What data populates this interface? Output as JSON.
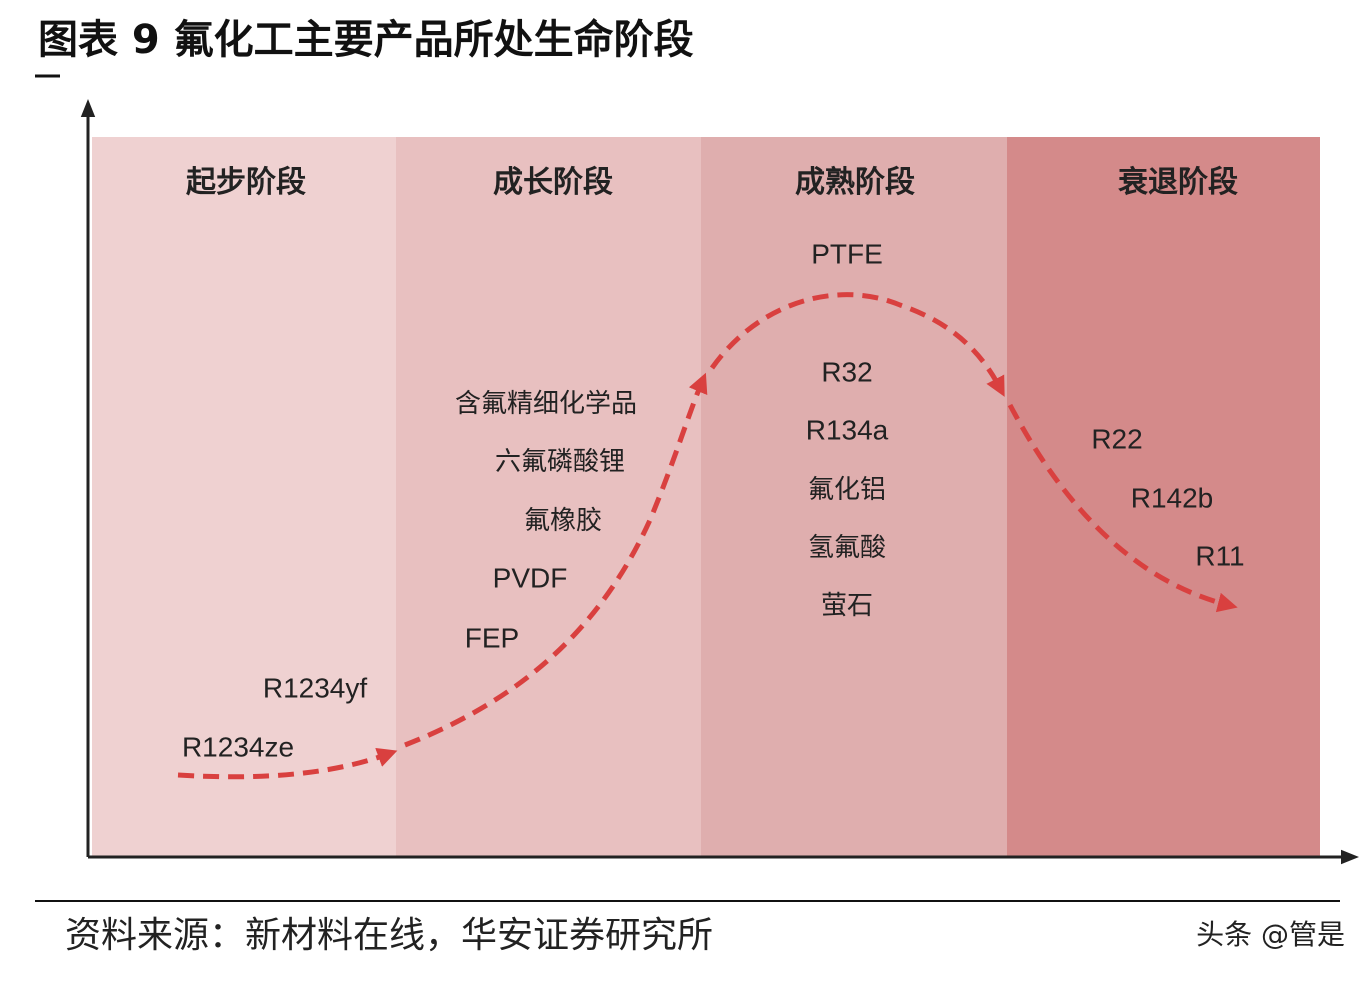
{
  "header": {
    "title": "图表 9 氟化工主要产品所处生命阶段"
  },
  "stages": [
    {
      "label": "起步阶段",
      "products": [
        "R1234yf",
        "R1234ze"
      ]
    },
    {
      "label": "成长阶段",
      "products": [
        "含氟精细化学品",
        "六氟磷酸锂",
        "氟橡胶",
        "PVDF",
        "FEP"
      ]
    },
    {
      "label": "成熟阶段",
      "products": [
        "PTFE",
        "R32",
        "R134a",
        "氟化铝",
        "氢氟酸",
        "萤石"
      ]
    },
    {
      "label": "衰退阶段",
      "products": [
        "R22",
        "R142b",
        "R11"
      ]
    }
  ],
  "footer": {
    "source": "资料来源：新材料在线，华安证券研究所",
    "watermark": "头条 @管是"
  }
}
